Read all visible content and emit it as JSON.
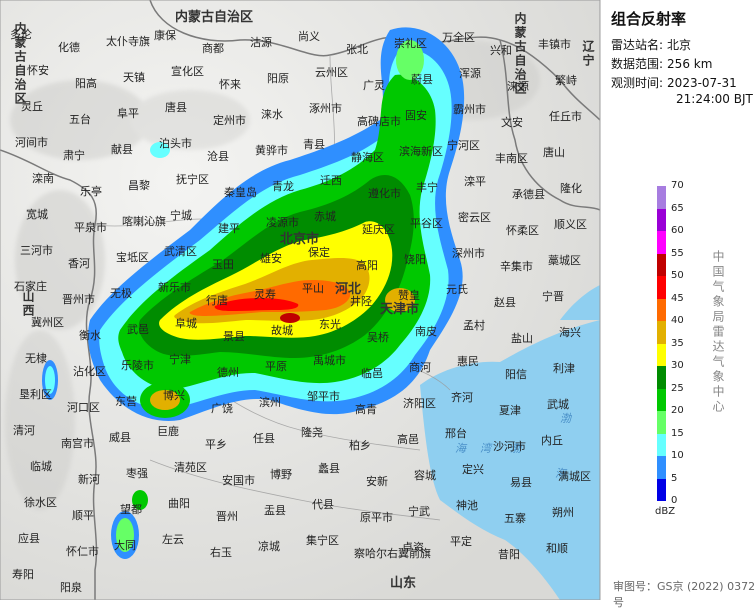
{
  "panel": {
    "title": "组合反射率",
    "station_label": "雷达站名:",
    "station_value": "北京",
    "range_label": "数据范围:",
    "range_value": "256 km",
    "time_label": "观测时间:",
    "time_date": "2023-07-31",
    "time_clock": "21:24:00 BJT",
    "credit": "中国气象局雷达气象中心",
    "approval": "审图号：GS京 (2022) 0372号"
  },
  "legend": {
    "unit": "dBZ",
    "levels": [
      {
        "label": "70",
        "color": "#a77de0"
      },
      {
        "label": "65",
        "color": "#9a00d6"
      },
      {
        "label": "60",
        "color": "#ff00ff"
      },
      {
        "label": "55",
        "color": "#c00000"
      },
      {
        "label": "50",
        "color": "#ff0000"
      },
      {
        "label": "45",
        "color": "#ff6a00"
      },
      {
        "label": "40",
        "color": "#e2b000"
      },
      {
        "label": "35",
        "color": "#ffff00"
      },
      {
        "label": "30",
        "color": "#008c00"
      },
      {
        "label": "25",
        "color": "#00c800"
      },
      {
        "label": "20",
        "color": "#66ff66"
      },
      {
        "label": "15",
        "color": "#66ffff"
      },
      {
        "label": "10",
        "color": "#2f8fff"
      },
      {
        "label": "5",
        "color": "#0000e6"
      },
      {
        "label": "0",
        "color": ""
      }
    ]
  },
  "map": {
    "sea_color": "#8fcff0",
    "land_color": "#e8e8e6",
    "provinces": [
      {
        "name": "内蒙古自治区"
      },
      {
        "name": "内蒙古自治区"
      },
      {
        "name": "内蒙古自治区"
      },
      {
        "name": "辽宁"
      },
      {
        "name": "河北"
      },
      {
        "name": "北京市"
      },
      {
        "name": "天津市"
      },
      {
        "name": "山西"
      },
      {
        "name": "山东"
      }
    ],
    "places": [
      "多伦",
      "化德",
      "太仆寺旗",
      "康保",
      "商都",
      "沽源",
      "尚义",
      "张北",
      "崇礼区",
      "万全区",
      "兴和",
      "丰镇市",
      "怀安",
      "阳高",
      "天镇",
      "宣化区",
      "怀来",
      "阳原",
      "云州区",
      "广灵",
      "蔚县",
      "浑源",
      "涞源",
      "繁峙",
      "灵丘",
      "五台",
      "阜平",
      "唐县",
      "定州市",
      "涞水",
      "涿州市",
      "高碑店市",
      "固安",
      "霸州市",
      "文安",
      "任丘市",
      "河间市",
      "肃宁",
      "献县",
      "泊头市",
      "沧县",
      "黄骅市",
      "青县",
      "静海区",
      "滨海新区",
      "宁河区",
      "丰南区",
      "唐山",
      "滦南",
      "乐亭",
      "昌黎",
      "抚宁区",
      "秦皇岛",
      "青龙",
      "迁西",
      "遵化市",
      "丰宁",
      "滦平",
      "承德县",
      "隆化",
      "宽城",
      "平泉市",
      "喀喇沁旗",
      "宁城",
      "建平",
      "凌源市",
      "赤城",
      "延庆区",
      "平谷区",
      "密云区",
      "怀柔区",
      "顺义区",
      "三河市",
      "香河",
      "宝坻区",
      "武清区",
      "玉田",
      "雄安",
      "保定",
      "高阳",
      "饶阳",
      "深州市",
      "辛集市",
      "藁城区",
      "石家庄",
      "晋州市",
      "无极",
      "新乐市",
      "行唐",
      "灵寿",
      "平山",
      "井陉",
      "赞皇",
      "元氏",
      "赵县",
      "宁晋",
      "冀州区",
      "衡水",
      "武邑",
      "阜城",
      "景县",
      "故城",
      "东光",
      "吴桥",
      "南皮",
      "孟村",
      "盐山",
      "海兴",
      "无棣",
      "沾化区",
      "乐陵市",
      "宁津",
      "德州",
      "平原",
      "禹城市",
      "临邑",
      "商河",
      "惠民",
      "阳信",
      "利津",
      "垦利区",
      "河口区",
      "东营",
      "博兴",
      "广饶",
      "滨州",
      "邹平市",
      "高青",
      "济阳区",
      "齐河",
      "夏津",
      "武城",
      "清河",
      "南宫市",
      "威县",
      "巨鹿",
      "平乡",
      "任县",
      "隆尧",
      "柏乡",
      "高邑",
      "邢台",
      "沙河市",
      "内丘",
      "临城",
      "新河",
      "枣强",
      "清苑区",
      "安国市",
      "博野",
      "蠡县",
      "安新",
      "容城",
      "定兴",
      "易县",
      "满城区",
      "徐水区",
      "顺平",
      "望都",
      "曲阳",
      "晋州",
      "盂县",
      "代县",
      "原平市",
      "宁武",
      "神池",
      "五寨",
      "朔州",
      "应县",
      "怀仁市",
      "大同",
      "左云",
      "右玉",
      "凉城",
      "集宁区",
      "察哈尔右翼前旗",
      "卓资",
      "平定",
      "昔阳",
      "和顺",
      "寿阳",
      "阳泉"
    ],
    "sea_labels": [
      "渤",
      "海",
      "湾",
      "渤",
      "海"
    ],
    "highlights": [
      "北",
      "京",
      "市",
      "河",
      "北",
      "天",
      "津",
      "市"
    ]
  }
}
